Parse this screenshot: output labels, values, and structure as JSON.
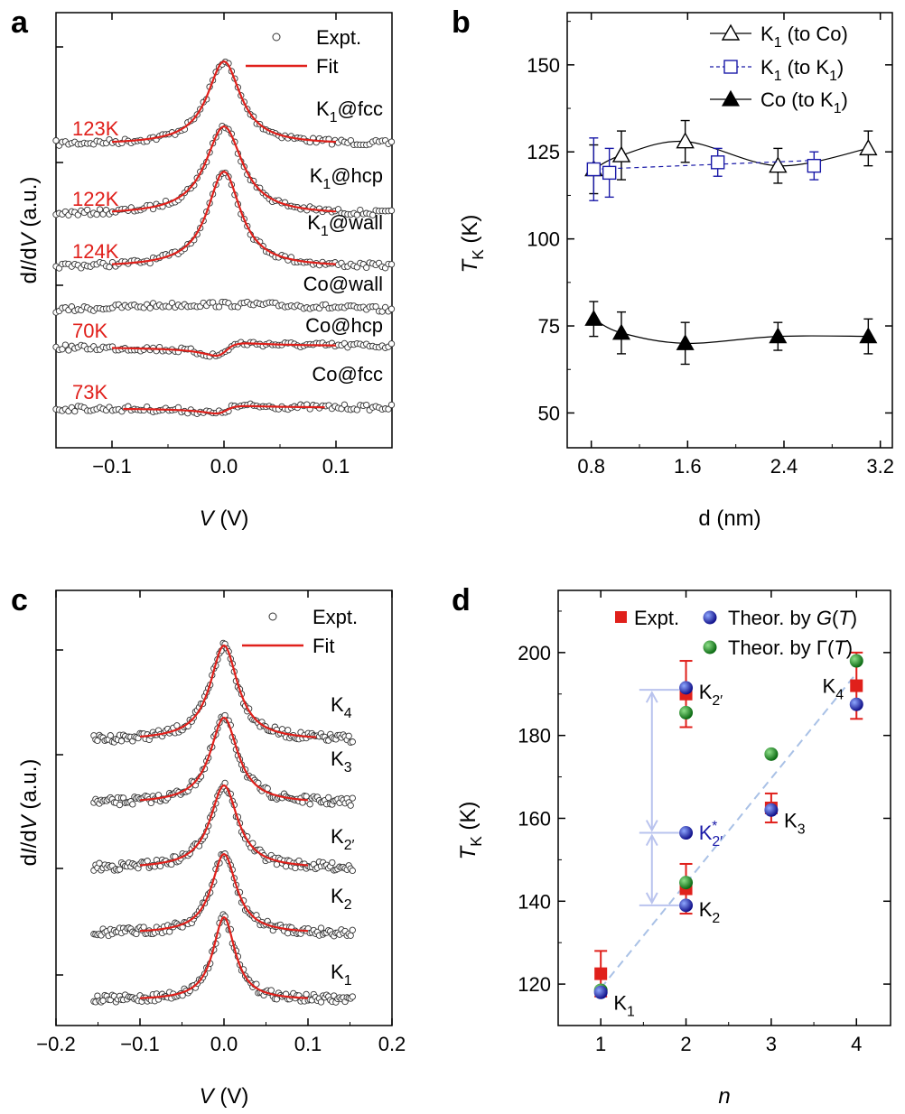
{
  "figure": [
    {
      "panel": "a",
      "chart_data": {
        "type": "line",
        "xlabel": "V (V)",
        "ylabel": "dI/dV (a.u.)",
        "xlim": [
          -0.15,
          0.15
        ],
        "xticks": [
          "−0.1",
          "0.0",
          "0.1"
        ],
        "xtick_values": [
          -0.1,
          0.0,
          0.1
        ],
        "legend": {
          "placement": "top-right",
          "entries": [
            "Expt.",
            "Fit"
          ]
        },
        "series_style": {
          "expt": "open black circles",
          "fit": "red line"
        },
        "spectra": [
          {
            "label_main": "K",
            "label_sub": "1",
            "label_rest": "@fcc",
            "tk": "123K",
            "kind": "peak",
            "amp": 92,
            "hw": 0.018,
            "fit_range": [
              -0.1,
              0.1
            ]
          },
          {
            "label_main": "K",
            "label_sub": "1",
            "label_rest": "@hcp",
            "tk": "122K",
            "kind": "peak",
            "amp": 98,
            "hw": 0.02,
            "fit_range": [
              -0.1,
              0.1
            ]
          },
          {
            "label_main": "K",
            "label_sub": "1",
            "label_rest": "@wall",
            "tk": "124K",
            "kind": "peak",
            "amp": 106,
            "hw": 0.018,
            "fit_range": [
              -0.1,
              0.1
            ]
          },
          {
            "label_main": "Co@wall",
            "label_sub": "",
            "label_rest": "",
            "tk": "",
            "kind": "flat",
            "amp": 8,
            "hw": 0.08,
            "fit_range": null
          },
          {
            "label_main": "Co@hcp",
            "label_sub": "",
            "label_rest": "",
            "tk": "70K",
            "kind": "fano",
            "amp": 20,
            "hw": 0.012,
            "fit_range": [
              -0.1,
              0.1
            ]
          },
          {
            "label_main": "Co@fcc",
            "label_sub": "",
            "label_rest": "",
            "tk": "73K",
            "kind": "fano",
            "amp": 12,
            "hw": 0.012,
            "fit_range": [
              -0.09,
              0.09
            ]
          }
        ]
      }
    },
    {
      "panel": "b",
      "chart_data": {
        "type": "scatter",
        "xlabel": "d (nm)",
        "ylabel_main": "T",
        "ylabel_sub": "K",
        "ylabel_unit": " (K)",
        "xlim": [
          0.6,
          3.3
        ],
        "ylim": [
          40,
          165
        ],
        "xticks": [
          "0.8",
          "1.6",
          "2.4",
          "3.2"
        ],
        "xtick_values": [
          0.8,
          1.6,
          2.4,
          3.2
        ],
        "yticks": [
          "50",
          "75",
          "100",
          "125",
          "150"
        ],
        "ytick_values": [
          50,
          75,
          100,
          125,
          150
        ],
        "legend": {
          "placement": "top-right"
        },
        "series": [
          {
            "name_main": "K",
            "name_sub": "1",
            "name_rest": " (to Co)",
            "marker": "open-triangle",
            "color": "#000000",
            "line": "solid",
            "x": [
              0.82,
              1.05,
              1.58,
              2.35,
              3.1
            ],
            "y": [
              120,
              124,
              128,
              121,
              126
            ],
            "err": [
              7,
              7,
              6,
              5,
              5
            ]
          },
          {
            "name_main": "K",
            "name_sub": "1",
            "name_rest": " (to K",
            "name_sub2": "1",
            "name_end": ")",
            "marker": "open-square",
            "color": "#1a1aa8",
            "line": "dashed",
            "x": [
              0.82,
              0.95,
              1.85,
              2.65
            ],
            "y": [
              120,
              119,
              122,
              121
            ],
            "err": [
              9,
              7,
              4,
              4
            ]
          },
          {
            "name_main": "Co (to K",
            "name_sub": "1",
            "name_rest": ")",
            "marker": "filled-triangle",
            "color": "#000000",
            "line": "solid",
            "x": [
              0.82,
              1.05,
              1.58,
              2.35,
              3.1
            ],
            "y": [
              77,
              73,
              70,
              72,
              72
            ],
            "err": [
              5,
              6,
              6,
              4,
              5
            ]
          }
        ]
      }
    },
    {
      "panel": "c",
      "chart_data": {
        "type": "line",
        "xlabel": "V (V)",
        "ylabel": "dI/dV (a.u.)",
        "xlim": [
          -0.2,
          0.2
        ],
        "xticks": [
          "−0.2",
          "−0.1",
          "0.0",
          "0.1",
          "0.2"
        ],
        "xtick_values": [
          -0.2,
          -0.1,
          0.0,
          0.1,
          0.2
        ],
        "legend": {
          "placement": "top-right",
          "entries": [
            "Expt.",
            "Fit"
          ]
        },
        "spectra": [
          {
            "label_main": "K",
            "label_sub": "4",
            "amp": 105,
            "hw": 0.02,
            "fit_range": [
              -0.1,
              0.11
            ]
          },
          {
            "label_main": "K",
            "label_sub": "3",
            "amp": 95,
            "hw": 0.02,
            "fit_range": [
              -0.1,
              0.1
            ]
          },
          {
            "label_main": "K",
            "label_sub": "2′",
            "amp": 92,
            "hw": 0.02,
            "fit_range": [
              -0.1,
              0.1
            ]
          },
          {
            "label_main": "K",
            "label_sub": "2",
            "amp": 88,
            "hw": 0.018,
            "fit_range": [
              -0.1,
              0.1
            ]
          },
          {
            "label_main": "K",
            "label_sub": "1",
            "amp": 92,
            "hw": 0.016,
            "fit_range": [
              -0.1,
              0.1
            ]
          }
        ]
      }
    },
    {
      "panel": "d",
      "chart_data": {
        "type": "scatter",
        "xlabel": "n",
        "ylabel_main": "T",
        "ylabel_sub": "K",
        "ylabel_unit": " (K)",
        "xlim": [
          0.5,
          4.4
        ],
        "ylim": [
          110,
          215
        ],
        "xticks": [
          "1",
          "2",
          "3",
          "4"
        ],
        "xtick_values": [
          1,
          2,
          3,
          4
        ],
        "yticks": [
          "120",
          "140",
          "160",
          "180",
          "200"
        ],
        "ytick_values": [
          120,
          140,
          160,
          180,
          200
        ],
        "legend": {
          "placement": "top-right",
          "expt": "Expt.",
          "g": "Theor. by G(T)",
          "gamma": "Theor. by Γ(T)"
        },
        "expt": {
          "x": [
            1,
            2,
            2,
            3,
            4
          ],
          "y": [
            122.5,
            190,
            143,
            162.5,
            192
          ],
          "err": [
            5.5,
            8,
            6,
            3.5,
            8
          ]
        },
        "theor_G": {
          "x": [
            1,
            2,
            2,
            2,
            3,
            4
          ],
          "y": [
            118,
            191.5,
            139,
            156.5,
            162,
            187.5
          ]
        },
        "theor_Gamma": {
          "x": [
            1,
            2,
            2,
            3,
            4
          ],
          "y": [
            118.5,
            185.5,
            144.5,
            175.5,
            198
          ]
        },
        "point_labels": [
          {
            "main": "K",
            "sub": "1",
            "x": 1.15,
            "y": 116,
            "color": "#000000"
          },
          {
            "main": "K",
            "sub": "2′",
            "x": 2.15,
            "y": 191,
            "color": "#000000"
          },
          {
            "main": "K",
            "sub": "2",
            "x": 2.15,
            "y": 138.5,
            "color": "#000000"
          },
          {
            "main": "K",
            "sub": "2′",
            "sup": "*",
            "x": 2.15,
            "y": 157,
            "color": "#1a1aa8"
          },
          {
            "main": "K",
            "sub": "3",
            "x": 3.15,
            "y": 160,
            "color": "#000000"
          },
          {
            "main": "K",
            "sub": "4",
            "x": 3.6,
            "y": 192.5,
            "color": "#000000"
          }
        ],
        "dashed_fit": {
          "x": [
            1,
            4
          ],
          "y": [
            119,
            195
          ]
        },
        "arrows": {
          "x": 1.6,
          "y_levels": [
            191,
            156.5,
            139
          ]
        }
      }
    }
  ]
}
